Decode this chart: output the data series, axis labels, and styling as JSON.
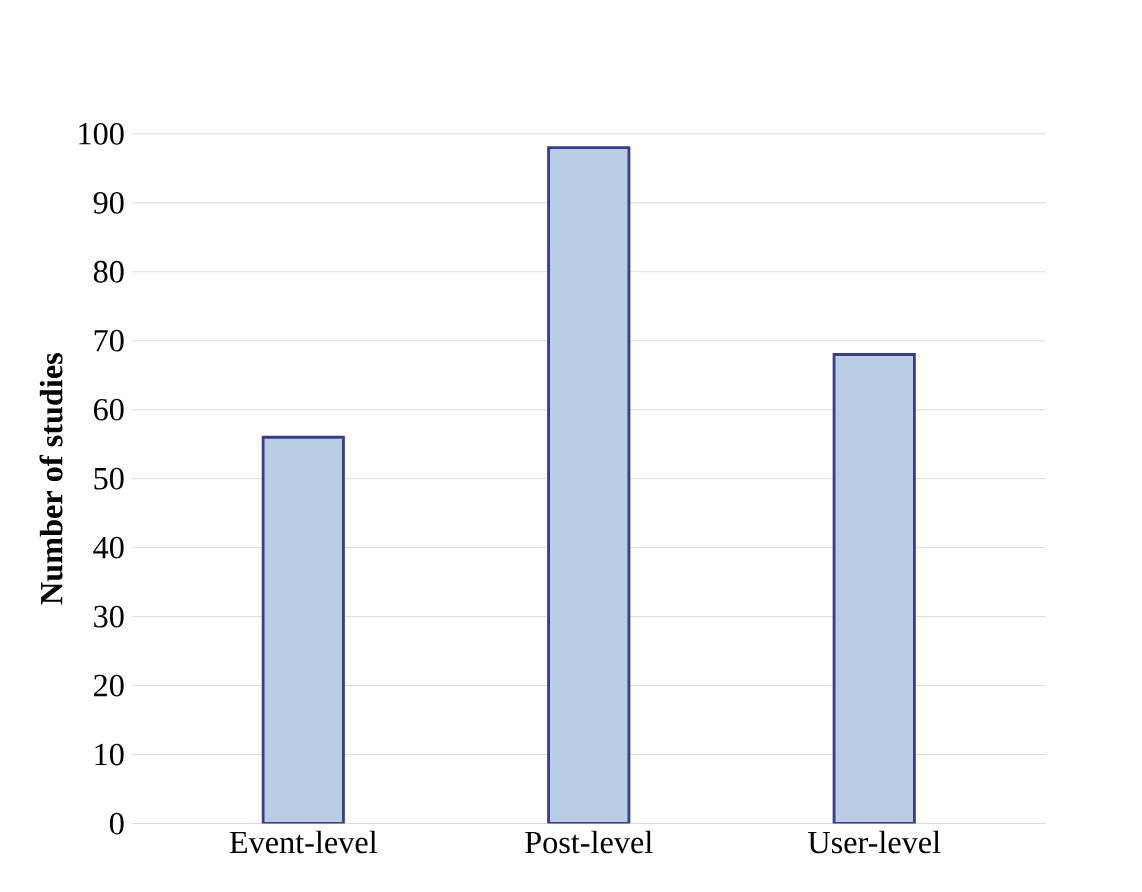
{
  "chart_data": {
    "type": "bar",
    "ylabel": "Number of studies",
    "categories": [
      "Event-level",
      "Post-level",
      "User-level"
    ],
    "values": [
      56,
      98,
      68
    ],
    "color": "#b9cde5",
    "ylim": [
      0,
      100
    ],
    "yticks": [
      0,
      10,
      20,
      30,
      40,
      50,
      60,
      70,
      80,
      90,
      100
    ],
    "grid": "y"
  }
}
